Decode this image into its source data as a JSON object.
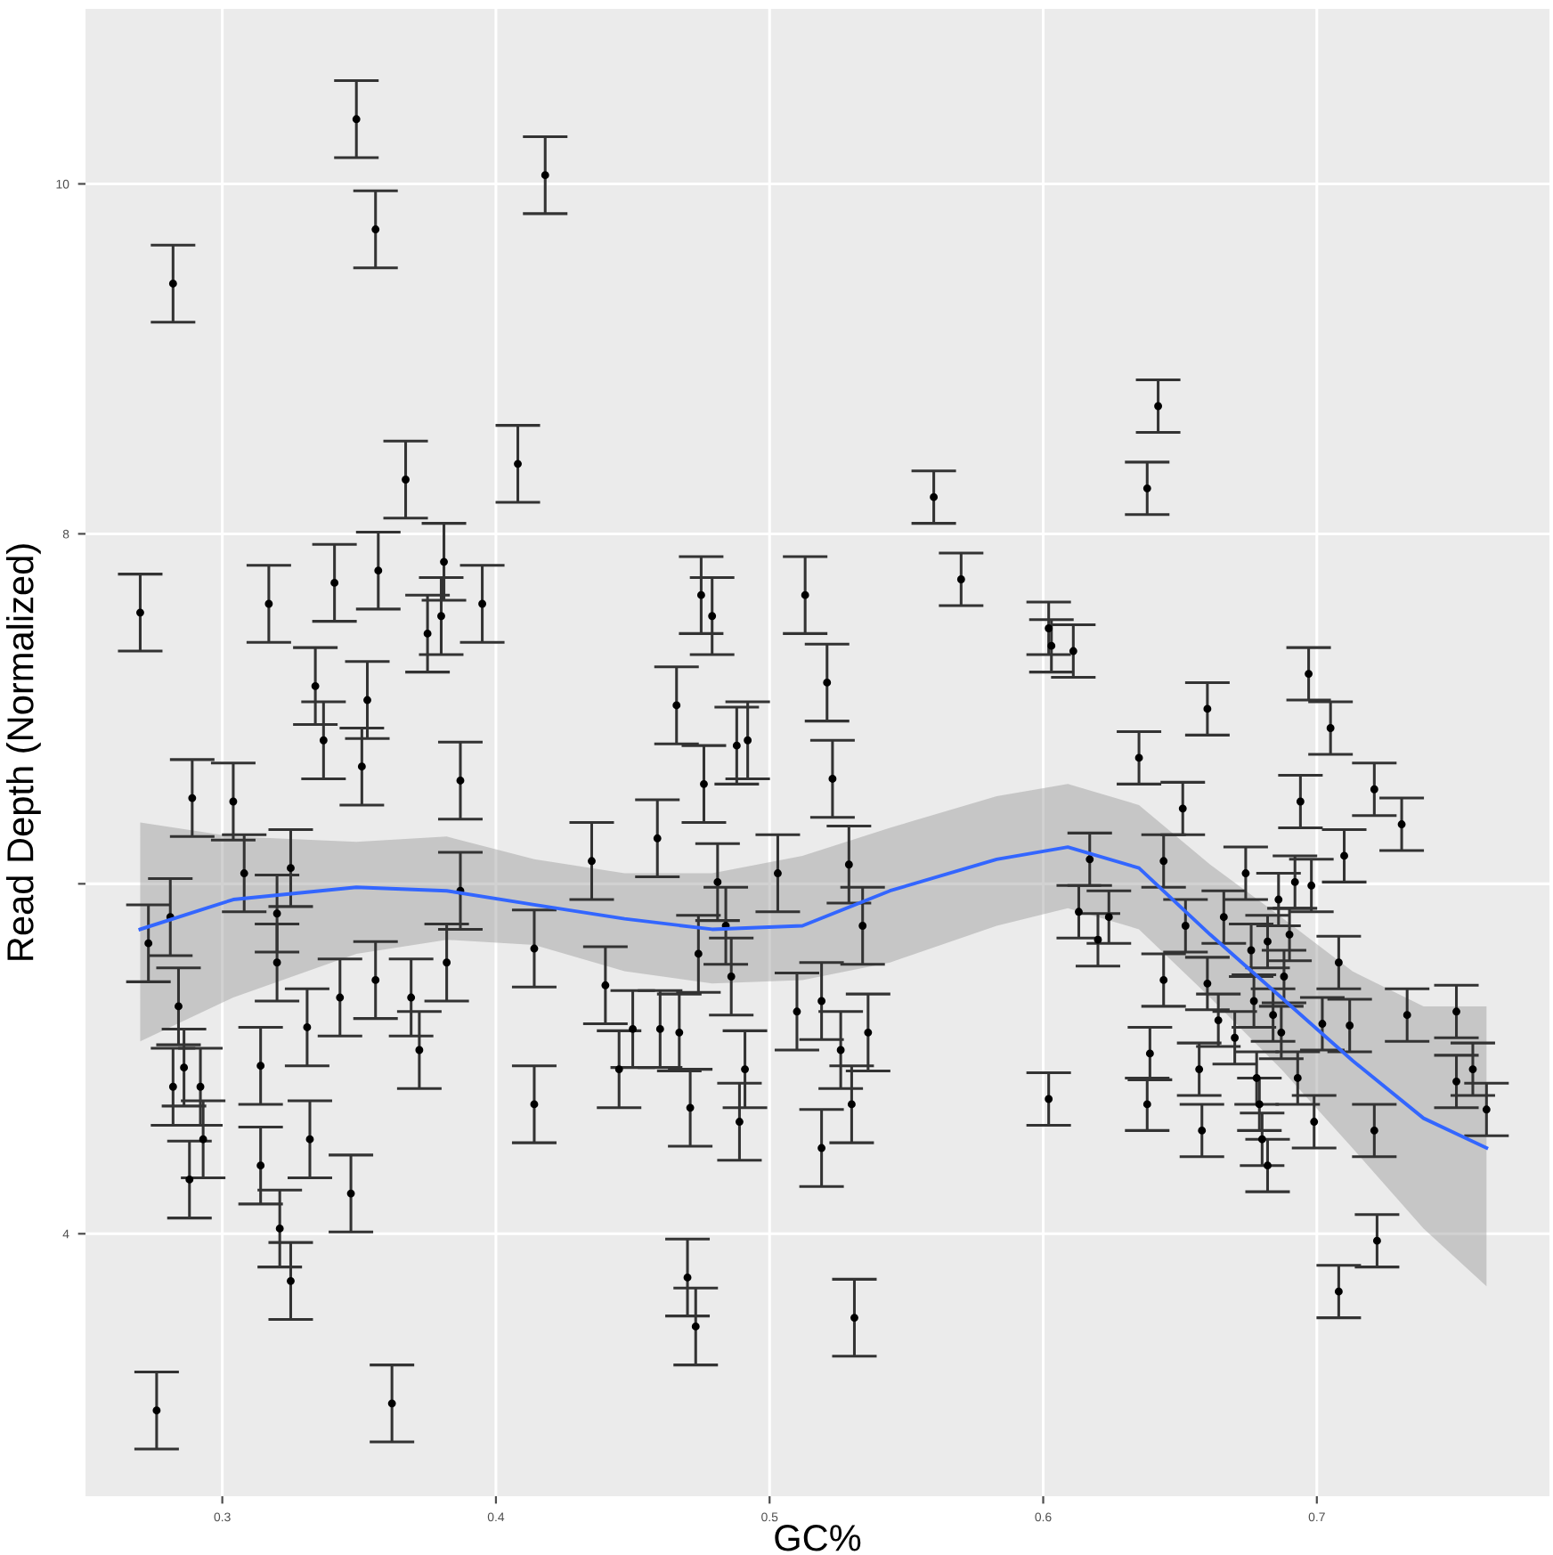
{
  "chart_data": {
    "type": "scatter",
    "xlabel": "GC%",
    "ylabel": "Read Depth (Normalized)",
    "xlim": [
      0.25,
      0.785
    ],
    "ylim": [
      2.5,
      11.0
    ],
    "xticks": [
      0.3,
      0.4,
      0.5,
      0.6,
      0.7
    ],
    "yticks": [
      4,
      {
        "value": 6,
        "label": null
      },
      8,
      10
    ],
    "grid": true,
    "series": [
      {
        "marker": "circle",
        "color": "#000000",
        "x": [
          0.27,
          0.273,
          0.276,
          0.281,
          0.282,
          0.282,
          0.284,
          0.286,
          0.288,
          0.289,
          0.292,
          0.293,
          0.304,
          0.308,
          0.314,
          0.314,
          0.317,
          0.32,
          0.32,
          0.321,
          0.325,
          0.325,
          0.331,
          0.332,
          0.334,
          0.337,
          0.341,
          0.343,
          0.347,
          0.349,
          0.351,
          0.353,
          0.356,
          0.356,
          0.357,
          0.362,
          0.367,
          0.369,
          0.372,
          0.375,
          0.38,
          0.381,
          0.382,
          0.387,
          0.387,
          0.395,
          0.408,
          0.414,
          0.414,
          0.418,
          0.435,
          0.44,
          0.445,
          0.45,
          0.459,
          0.46,
          0.466,
          0.467,
          0.47,
          0.471,
          0.474,
          0.473,
          0.475,
          0.479,
          0.476,
          0.481,
          0.484,
          0.486,
          0.488,
          0.489,
          0.491,
          0.492,
          0.503,
          0.51,
          0.513,
          0.519,
          0.521,
          0.519,
          0.523,
          0.526,
          0.529,
          0.53,
          0.531,
          0.534,
          0.536,
          0.56,
          0.57,
          0.602,
          0.603,
          0.611,
          0.602,
          0.613,
          0.617,
          0.62,
          0.624,
          0.635,
          0.638,
          0.638,
          0.639,
          0.642,
          0.644,
          0.644,
          0.651,
          0.652,
          0.657,
          0.658,
          0.66,
          0.66,
          0.664,
          0.666,
          0.67,
          0.674,
          0.676,
          0.677,
          0.678,
          0.679,
          0.68,
          0.682,
          0.682,
          0.684,
          0.686,
          0.687,
          0.688,
          0.69,
          0.692,
          0.693,
          0.694,
          0.697,
          0.698,
          0.699,
          0.702,
          0.705,
          0.708,
          0.708,
          0.71,
          0.712,
          0.721,
          0.721,
          0.722,
          0.731,
          0.733,
          0.751,
          0.751,
          0.757,
          0.762
        ],
        "values": [
          7.55,
          5.66,
          2.99,
          5.81,
          9.43,
          4.84,
          5.3,
          4.95,
          4.31,
          6.49,
          4.84,
          4.54,
          6.47,
          6.06,
          4.96,
          4.39,
          7.6,
          5.83,
          5.55,
          4.03,
          6.09,
          3.73,
          5.18,
          4.54,
          7.13,
          6.82,
          7.72,
          5.35,
          4.23,
          10.37,
          6.67,
          7.05,
          5.45,
          9.74,
          7.79,
          3.03,
          8.31,
          5.35,
          5.05,
          7.43,
          7.53,
          7.84,
          5.55,
          6.59,
          5.96,
          7.6,
          8.4,
          5.63,
          4.74,
          10.05,
          6.13,
          5.42,
          4.94,
          5.17,
          6.26,
          5.17,
          7.02,
          5.15,
          3.75,
          4.72,
          5.6,
          3.47,
          7.65,
          7.53,
          6.57,
          6.01,
          5.76,
          5.47,
          6.79,
          4.64,
          4.94,
          6.82,
          6.06,
          5.27,
          7.65,
          4.49,
          7.15,
          5.33,
          6.6,
          5.05,
          6.11,
          4.74,
          3.52,
          5.76,
          5.15,
          8.21,
          7.74,
          7.46,
          7.36,
          7.33,
          4.77,
          5.84,
          6.14,
          5.68,
          5.81,
          6.72,
          4.74,
          8.26,
          5.03,
          8.73,
          6.13,
          5.45,
          6.43,
          5.76,
          4.94,
          4.59,
          5.43,
          7.0,
          5.22,
          5.81,
          5.12,
          6.06,
          5.62,
          5.33,
          4.89,
          4.74,
          4.54,
          4.39,
          5.67,
          5.25,
          5.91,
          5.15,
          5.47,
          5.71,
          6.01,
          4.89,
          6.47,
          7.2,
          5.99,
          4.64,
          5.2,
          6.89,
          5.55,
          3.67,
          6.16,
          5.19,
          6.54,
          4.59,
          3.96,
          6.34,
          5.25,
          5.27,
          4.87,
          4.94,
          4.71
        ],
        "errors": [
          0.22,
          0.22,
          0.22,
          0.22,
          0.22,
          0.22,
          0.22,
          0.22,
          0.22,
          0.22,
          0.22,
          0.22,
          0.22,
          0.22,
          0.22,
          0.22,
          0.22,
          0.22,
          0.22,
          0.22,
          0.22,
          0.22,
          0.22,
          0.22,
          0.22,
          0.22,
          0.22,
          0.22,
          0.22,
          0.22,
          0.22,
          0.22,
          0.22,
          0.22,
          0.22,
          0.22,
          0.22,
          0.22,
          0.22,
          0.22,
          0.22,
          0.22,
          0.22,
          0.22,
          0.22,
          0.22,
          0.22,
          0.22,
          0.22,
          0.22,
          0.22,
          0.22,
          0.22,
          0.22,
          0.22,
          0.22,
          0.22,
          0.22,
          0.22,
          0.22,
          0.22,
          0.22,
          0.22,
          0.22,
          0.22,
          0.22,
          0.22,
          0.22,
          0.22,
          0.22,
          0.22,
          0.22,
          0.22,
          0.22,
          0.22,
          0.22,
          0.22,
          0.22,
          0.22,
          0.22,
          0.22,
          0.22,
          0.22,
          0.22,
          0.22,
          0.15,
          0.15,
          0.15,
          0.15,
          0.15,
          0.15,
          0.15,
          0.15,
          0.15,
          0.15,
          0.15,
          0.15,
          0.15,
          0.15,
          0.15,
          0.15,
          0.15,
          0.15,
          0.15,
          0.15,
          0.15,
          0.15,
          0.15,
          0.15,
          0.15,
          0.15,
          0.15,
          0.15,
          0.15,
          0.15,
          0.15,
          0.15,
          0.15,
          0.15,
          0.15,
          0.15,
          0.15,
          0.15,
          0.15,
          0.15,
          0.15,
          0.15,
          0.15,
          0.15,
          0.15,
          0.15,
          0.15,
          0.15,
          0.15,
          0.15,
          0.15,
          0.15,
          0.15,
          0.15,
          0.15,
          0.15,
          0.15,
          0.15,
          0.15,
          0.15
        ]
      },
      {
        "type": "line",
        "color": "#3366ff",
        "x": [
          0.27,
          0.304,
          0.349,
          0.382,
          0.414,
          0.447,
          0.479,
          0.512,
          0.544,
          0.583,
          0.609,
          0.635,
          0.661,
          0.687,
          0.713,
          0.739,
          0.762
        ],
        "values": [
          5.74,
          5.91,
          5.98,
          5.96,
          5.88,
          5.8,
          5.74,
          5.76,
          5.96,
          6.14,
          6.21,
          6.09,
          5.71,
          5.35,
          4.99,
          4.66,
          4.49
        ],
        "upper": [
          6.35,
          6.27,
          6.24,
          6.27,
          6.14,
          6.06,
          6.06,
          6.16,
          6.32,
          6.5,
          6.57,
          6.45,
          6.11,
          5.81,
          5.5,
          5.3,
          5.3
        ],
        "lower": [
          5.1,
          5.35,
          5.6,
          5.68,
          5.65,
          5.5,
          5.43,
          5.45,
          5.55,
          5.76,
          5.86,
          5.74,
          5.35,
          4.94,
          4.49,
          4.03,
          3.7
        ]
      }
    ]
  }
}
